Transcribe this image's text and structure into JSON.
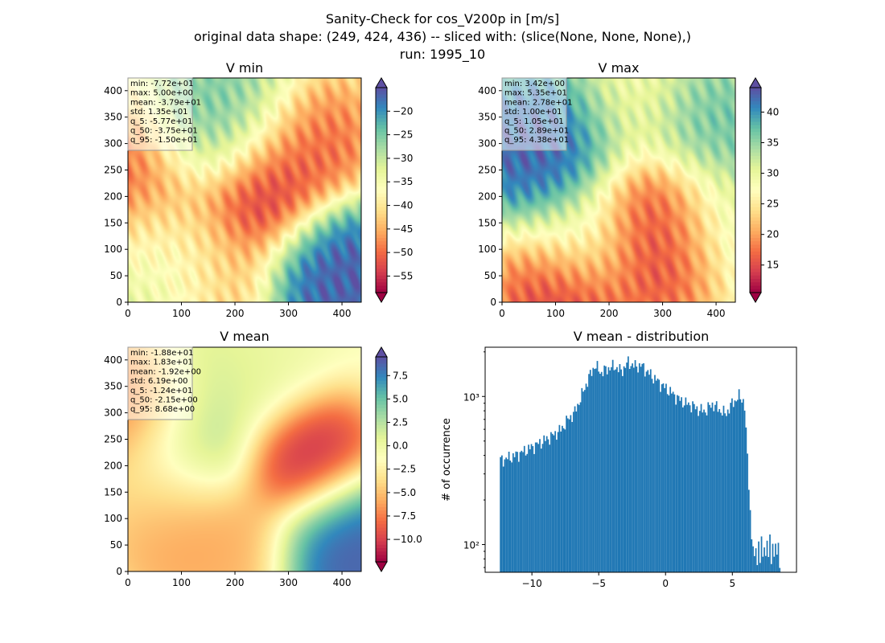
{
  "figure": {
    "title_lines": [
      "Sanity-Check for cos_V200p in [m/s]",
      "original data shape: (249, 424, 436) -- sliced with: (slice(None, None, None),)",
      "run: 1995_10"
    ]
  },
  "colormap": {
    "name": "Spectral",
    "stops": [
      "#9e0142",
      "#d53e4f",
      "#f46d43",
      "#fdae61",
      "#fee08b",
      "#ffffbf",
      "#e6f598",
      "#abdda4",
      "#66c2a5",
      "#3288bd",
      "#5e4fa2"
    ]
  },
  "chart_data": [
    {
      "type": "heatmap",
      "id": "vmin",
      "title": "V min",
      "xlim": [
        0,
        436
      ],
      "ylim": [
        0,
        424
      ],
      "xticks": [
        0,
        100,
        200,
        300,
        400
      ],
      "yticks": [
        0,
        50,
        100,
        150,
        200,
        250,
        300,
        350,
        400
      ],
      "colorbar": {
        "vmin": -58.5,
        "vmax": -15.0,
        "ticks": [
          -20,
          -25,
          -30,
          -35,
          -40,
          -45,
          -50,
          -55
        ]
      },
      "stats_lines": [
        "min: -7.72e+01",
        "max: 5.00e+00",
        "mean: -3.79e+01",
        "std: 1.35e+01",
        "q_5: -5.77e+01",
        "q_50: -3.75e+01",
        "q_95: -1.50e+01"
      ],
      "field_features": [
        {
          "x": 240,
          "y": 200,
          "value": -58
        },
        {
          "x": 330,
          "y": 300,
          "value": -52
        },
        {
          "x": 20,
          "y": 260,
          "value": -54
        },
        {
          "x": 150,
          "y": 50,
          "value": -48
        },
        {
          "x": 60,
          "y": 120,
          "value": -44
        },
        {
          "x": 380,
          "y": 40,
          "value": -15
        },
        {
          "x": 410,
          "y": 60,
          "value": -15
        },
        {
          "x": 140,
          "y": 320,
          "value": -22
        },
        {
          "x": 200,
          "y": 380,
          "value": -25
        },
        {
          "x": 80,
          "y": 60,
          "value": -25
        }
      ]
    },
    {
      "type": "heatmap",
      "id": "vmax",
      "title": "V max",
      "xlim": [
        0,
        436
      ],
      "ylim": [
        0,
        424
      ],
      "xticks": [
        0,
        100,
        200,
        300,
        400
      ],
      "yticks": [
        0,
        50,
        100,
        150,
        200,
        250,
        300,
        350,
        400
      ],
      "colorbar": {
        "vmin": 10.5,
        "vmax": 44.0,
        "ticks": [
          15,
          20,
          25,
          30,
          35,
          40
        ]
      },
      "stats_lines": [
        "min: 3.42e+00",
        "max: 5.35e+01",
        "mean: 2.78e+01",
        "std: 1.00e+01",
        "q_5: 1.05e+01",
        "q_50: 2.89e+01",
        "q_95: 4.38e+01"
      ],
      "field_features": [
        {
          "x": 60,
          "y": 280,
          "value": 44
        },
        {
          "x": 110,
          "y": 320,
          "value": 44
        },
        {
          "x": 280,
          "y": 160,
          "value": 11
        },
        {
          "x": 300,
          "y": 100,
          "value": 12
        },
        {
          "x": 120,
          "y": 30,
          "value": 11
        },
        {
          "x": 380,
          "y": 330,
          "value": 38
        },
        {
          "x": 160,
          "y": 130,
          "value": 34
        },
        {
          "x": 400,
          "y": 150,
          "value": 33
        },
        {
          "x": 230,
          "y": 370,
          "value": 28
        }
      ]
    },
    {
      "type": "heatmap",
      "id": "vmean",
      "title": "V mean",
      "xlim": [
        0,
        436
      ],
      "ylim": [
        0,
        424
      ],
      "xticks": [
        0,
        100,
        200,
        300,
        400
      ],
      "yticks": [
        0,
        50,
        100,
        150,
        200,
        250,
        300,
        350,
        400
      ],
      "colorbar": {
        "vmin": -12.4,
        "vmax": 9.5,
        "ticks": [
          7.5,
          5.0,
          2.5,
          0.0,
          -2.5,
          -5.0,
          -7.5,
          -10.0
        ]
      },
      "stats_lines": [
        "min: -1.88e+01",
        "max: 1.83e+01",
        "mean: -1.92e+00",
        "std: 6.19e+00",
        "q_5: -1.24e+01",
        "q_50: -2.15e+00",
        "q_95: 8.68e+00"
      ],
      "field_features": [
        {
          "x": 330,
          "y": 210,
          "value": -12.4
        },
        {
          "x": 420,
          "y": 60,
          "value": 9.5
        },
        {
          "x": 400,
          "y": 20,
          "value": 9.5
        },
        {
          "x": 120,
          "y": 240,
          "value": 5
        },
        {
          "x": 180,
          "y": 360,
          "value": 2
        },
        {
          "x": 100,
          "y": 80,
          "value": -7
        },
        {
          "x": 200,
          "y": 30,
          "value": -6
        },
        {
          "x": 20,
          "y": 300,
          "value": -9
        },
        {
          "x": 60,
          "y": 160,
          "value": -4
        },
        {
          "x": 250,
          "y": 400,
          "value": 0
        }
      ]
    },
    {
      "type": "bar",
      "id": "hist",
      "title": "V mean - distribution",
      "ylabel": "# of occurrence",
      "xlim": [
        -13.5,
        9.8
      ],
      "ylim": [
        65,
        2150
      ],
      "yscale": "log",
      "xticks": [
        -10,
        -5,
        0,
        5
      ],
      "yticks": [
        {
          "value": 100,
          "label": "10²"
        },
        {
          "value": 1000,
          "label": "10³"
        }
      ],
      "color": "#1f77b4",
      "bin_edges_range": [
        -12.4,
        8.6
      ],
      "bins": 200,
      "profile": [
        [
          -12.4,
          370
        ],
        [
          -11.5,
          390
        ],
        [
          -10.5,
          430
        ],
        [
          -9.5,
          480
        ],
        [
          -8.5,
          540
        ],
        [
          -7.8,
          600
        ],
        [
          -7.3,
          700
        ],
        [
          -6.8,
          780
        ],
        [
          -6.3,
          1000
        ],
        [
          -5.8,
          1300
        ],
        [
          -5.3,
          1620
        ],
        [
          -4.8,
          1450
        ],
        [
          -4.3,
          1550
        ],
        [
          -3.8,
          1600
        ],
        [
          -3.3,
          1480
        ],
        [
          -2.8,
          1700
        ],
        [
          -2.3,
          1600
        ],
        [
          -1.8,
          1620
        ],
        [
          -1.3,
          1450
        ],
        [
          -0.8,
          1320
        ],
        [
          -0.3,
          1200
        ],
        [
          0.5,
          1050
        ],
        [
          1.0,
          960
        ],
        [
          1.5,
          900
        ],
        [
          2.0,
          870
        ],
        [
          2.5,
          810
        ],
        [
          3.0,
          800
        ],
        [
          3.5,
          890
        ],
        [
          4.0,
          820
        ],
        [
          4.5,
          760
        ],
        [
          5.0,
          900
        ],
        [
          5.5,
          1000
        ],
        [
          5.9,
          930
        ],
        [
          6.2,
          300
        ],
        [
          6.5,
          90
        ],
        [
          7.0,
          95
        ],
        [
          7.5,
          100
        ],
        [
          8.0,
          98
        ],
        [
          8.5,
          95
        ]
      ]
    }
  ]
}
